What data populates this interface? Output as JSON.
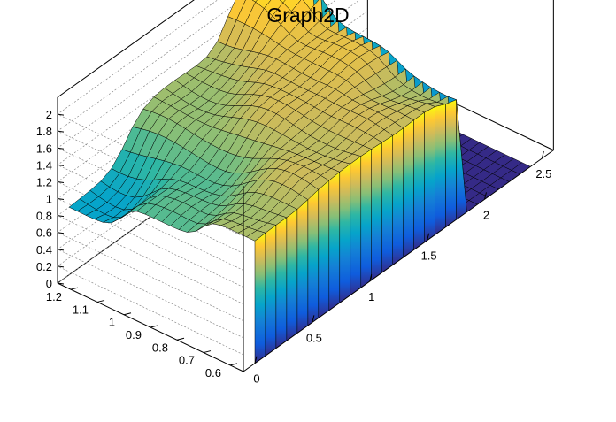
{
  "chart_data": {
    "type": "surface",
    "title": "Graph2D",
    "xlabel": "",
    "ylabel": "",
    "zlabel": "",
    "xlim": [
      -0.1,
      2.6
    ],
    "ylim": [
      0.55,
      1.25
    ],
    "zlim": [
      0,
      2.2
    ],
    "grid": true,
    "x_ticks": [
      "0",
      "0.5",
      "1",
      "1.5",
      "2",
      "2.5"
    ],
    "x_tick_values": [
      0,
      0.5,
      1,
      1.5,
      2,
      2.5
    ],
    "y_ticks": [
      "0.6",
      "0.7",
      "0.8",
      "0.9",
      "1",
      "1.1",
      "1.2"
    ],
    "y_tick_values": [
      0.6,
      0.7,
      0.8,
      0.9,
      1.0,
      1.1,
      1.2
    ],
    "z_ticks": [
      "0",
      "0.2",
      "0.4",
      "0.6",
      "0.8",
      "1",
      "1.2",
      "1.4",
      "1.6",
      "1.8",
      "2"
    ],
    "z_tick_values": [
      0,
      0.2,
      0.4,
      0.6,
      0.8,
      1.0,
      1.2,
      1.4,
      1.6,
      1.8,
      2.0
    ],
    "nonzero_region": {
      "x": [
        0.0,
        1.8
      ],
      "y": [
        0.55,
        1.25
      ]
    },
    "surface_samples": [
      {
        "x": 0.0,
        "y": 0.6,
        "z": 1.45
      },
      {
        "x": 0.9,
        "y": 0.6,
        "z": 1.55
      },
      {
        "x": 1.5,
        "y": 0.6,
        "z": 1.55
      },
      {
        "x": 1.75,
        "y": 0.6,
        "z": 1.4
      },
      {
        "x": 0.0,
        "y": 0.9,
        "z": 1.15
      },
      {
        "x": 1.5,
        "y": 0.9,
        "z": 1.65
      },
      {
        "x": 0.0,
        "y": 1.2,
        "z": 0.8
      },
      {
        "x": 1.0,
        "y": 1.2,
        "z": 1.4
      },
      {
        "x": 1.75,
        "y": 1.2,
        "z": 2.0
      },
      {
        "x": 2.0,
        "y": 0.9,
        "z": 0.0
      },
      {
        "x": 2.5,
        "y": 0.6,
        "z": 0.0
      }
    ]
  }
}
